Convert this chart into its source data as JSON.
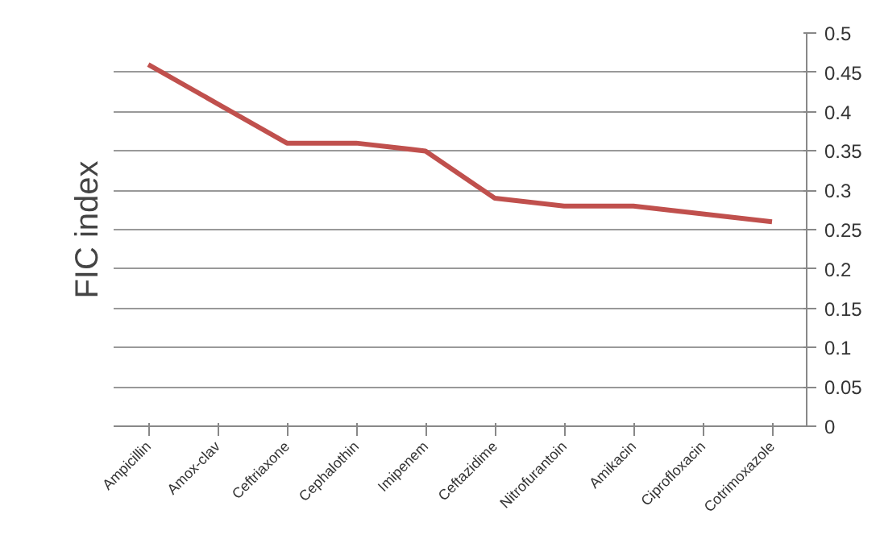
{
  "chart_data": {
    "type": "line",
    "ylabel": "FIC index",
    "categories": [
      "Ampicillin",
      "Amox-clav",
      "Ceftriaxone",
      "Cephalothin",
      "Imipenem",
      "Ceftazidime",
      "Nitrofurantoin",
      "Amikacin",
      "Ciprofloxacin",
      "Cotrimoxazole"
    ],
    "series": [
      {
        "color": "#c0504d",
        "values": [
          0.46,
          0.41,
          0.36,
          0.36,
          0.35,
          0.29,
          0.28,
          0.28,
          0.27,
          0.26
        ]
      }
    ],
    "ylim": [
      0,
      0.5
    ],
    "yticks": [
      0,
      0.05,
      0.1,
      0.15,
      0.2,
      0.25,
      0.3,
      0.35,
      0.4,
      0.45,
      0.5
    ],
    "grid": "y",
    "marker": "none",
    "line_style": "solid"
  }
}
